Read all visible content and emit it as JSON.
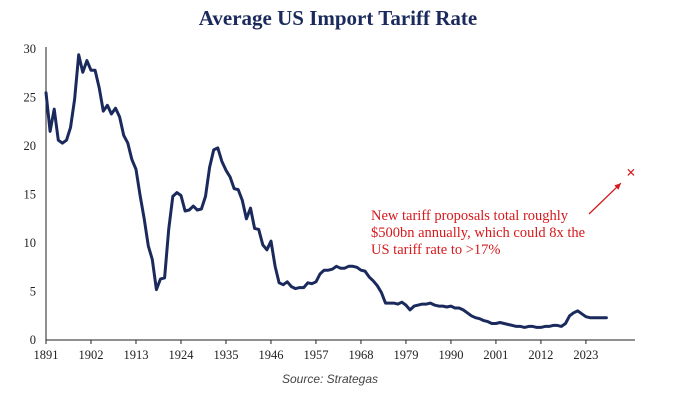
{
  "chart_data": {
    "type": "line",
    "title": "Average US Import Tariff Rate",
    "xlabel": "",
    "ylabel": "",
    "x_ticks": [
      "1891",
      "1902",
      "1913",
      "1924",
      "1935",
      "1946",
      "1957",
      "1968",
      "1979",
      "1990",
      "2001",
      "2012",
      "2023"
    ],
    "y_ticks": [
      "0",
      "5",
      "10",
      "15",
      "20",
      "25",
      "30"
    ],
    "xlim": [
      1891,
      2035
    ],
    "ylim": [
      0,
      30
    ],
    "grid": false,
    "legend": "none",
    "series": [
      {
        "points": [
          [
            1891,
            25.5
          ],
          [
            1892,
            21.5
          ],
          [
            1893,
            23.8
          ],
          [
            1894,
            20.6
          ],
          [
            1895,
            20.3
          ],
          [
            1896,
            20.6
          ],
          [
            1897,
            21.9
          ],
          [
            1898,
            24.8
          ],
          [
            1899,
            29.4
          ],
          [
            1900,
            27.6
          ],
          [
            1901,
            28.8
          ],
          [
            1902,
            27.8
          ],
          [
            1903,
            27.8
          ],
          [
            1904,
            26.0
          ],
          [
            1905,
            23.6
          ],
          [
            1906,
            24.2
          ],
          [
            1907,
            23.3
          ],
          [
            1908,
            23.9
          ],
          [
            1909,
            23.0
          ],
          [
            1910,
            21.1
          ],
          [
            1911,
            20.3
          ],
          [
            1912,
            18.6
          ],
          [
            1913,
            17.6
          ],
          [
            1914,
            14.9
          ],
          [
            1915,
            12.5
          ],
          [
            1916,
            9.7
          ],
          [
            1917,
            8.3
          ],
          [
            1918,
            5.2
          ],
          [
            1919,
            6.3
          ],
          [
            1920,
            6.4
          ],
          [
            1921,
            11.4
          ],
          [
            1922,
            14.8
          ],
          [
            1923,
            15.2
          ],
          [
            1924,
            14.9
          ],
          [
            1925,
            13.3
          ],
          [
            1926,
            13.4
          ],
          [
            1927,
            13.8
          ],
          [
            1928,
            13.4
          ],
          [
            1929,
            13.5
          ],
          [
            1930,
            14.8
          ],
          [
            1931,
            17.8
          ],
          [
            1932,
            19.6
          ],
          [
            1933,
            19.8
          ],
          [
            1934,
            18.4
          ],
          [
            1935,
            17.5
          ],
          [
            1936,
            16.8
          ],
          [
            1937,
            15.6
          ],
          [
            1938,
            15.5
          ],
          [
            1939,
            14.4
          ],
          [
            1940,
            12.5
          ],
          [
            1941,
            13.6
          ],
          [
            1942,
            11.5
          ],
          [
            1943,
            11.4
          ],
          [
            1944,
            9.8
          ],
          [
            1945,
            9.3
          ],
          [
            1946,
            10.2
          ],
          [
            1947,
            7.6
          ],
          [
            1948,
            5.9
          ],
          [
            1949,
            5.7
          ],
          [
            1950,
            6.0
          ],
          [
            1951,
            5.5
          ],
          [
            1952,
            5.3
          ],
          [
            1953,
            5.4
          ],
          [
            1954,
            5.4
          ],
          [
            1955,
            5.9
          ],
          [
            1956,
            5.8
          ],
          [
            1957,
            6.0
          ],
          [
            1958,
            6.8
          ],
          [
            1959,
            7.2
          ],
          [
            1960,
            7.2
          ],
          [
            1961,
            7.3
          ],
          [
            1962,
            7.6
          ],
          [
            1963,
            7.4
          ],
          [
            1964,
            7.4
          ],
          [
            1965,
            7.6
          ],
          [
            1966,
            7.6
          ],
          [
            1967,
            7.5
          ],
          [
            1968,
            7.2
          ],
          [
            1969,
            7.1
          ],
          [
            1970,
            6.5
          ],
          [
            1971,
            6.1
          ],
          [
            1972,
            5.6
          ],
          [
            1973,
            4.9
          ],
          [
            1974,
            3.8
          ],
          [
            1975,
            3.8
          ],
          [
            1976,
            3.8
          ],
          [
            1977,
            3.7
          ],
          [
            1978,
            3.9
          ],
          [
            1979,
            3.6
          ],
          [
            1980,
            3.1
          ],
          [
            1981,
            3.5
          ],
          [
            1982,
            3.6
          ],
          [
            1983,
            3.7
          ],
          [
            1984,
            3.7
          ],
          [
            1985,
            3.8
          ],
          [
            1986,
            3.6
          ],
          [
            1987,
            3.5
          ],
          [
            1988,
            3.5
          ],
          [
            1989,
            3.4
          ],
          [
            1990,
            3.5
          ],
          [
            1991,
            3.3
          ],
          [
            1992,
            3.3
          ],
          [
            1993,
            3.1
          ],
          [
            1994,
            2.8
          ],
          [
            1995,
            2.5
          ],
          [
            1996,
            2.3
          ],
          [
            1997,
            2.2
          ],
          [
            1998,
            2.0
          ],
          [
            1999,
            1.9
          ],
          [
            2000,
            1.7
          ],
          [
            2001,
            1.7
          ],
          [
            2002,
            1.8
          ],
          [
            2003,
            1.7
          ],
          [
            2004,
            1.6
          ],
          [
            2005,
            1.5
          ],
          [
            2006,
            1.4
          ],
          [
            2007,
            1.4
          ],
          [
            2008,
            1.3
          ],
          [
            2009,
            1.4
          ],
          [
            2010,
            1.4
          ],
          [
            2011,
            1.3
          ],
          [
            2012,
            1.3
          ],
          [
            2013,
            1.4
          ],
          [
            2014,
            1.4
          ],
          [
            2015,
            1.5
          ],
          [
            2016,
            1.5
          ],
          [
            2017,
            1.4
          ],
          [
            2018,
            1.7
          ],
          [
            2019,
            2.5
          ],
          [
            2020,
            2.8
          ],
          [
            2021,
            3.0
          ],
          [
            2022,
            2.7
          ],
          [
            2023,
            2.4
          ],
          [
            2024,
            2.3
          ],
          [
            2025,
            2.3
          ],
          [
            2026,
            2.3
          ],
          [
            2027,
            2.3
          ],
          [
            2028,
            2.3
          ]
        ]
      }
    ],
    "marker": {
      "x": 2034,
      "y": 17.3,
      "symbol": "×"
    },
    "annotation": {
      "lines": [
        "New tariff proposals total roughly",
        "$500bn annually, which could 8x the",
        "US tariff rate to >17%"
      ]
    },
    "source": "Source: Strategas"
  },
  "colors": {
    "title": "#1b2a5c",
    "series_line": "#1b2a5c",
    "axis": "#222222",
    "annotation": "#d7191c",
    "marker": "#d7191c"
  }
}
